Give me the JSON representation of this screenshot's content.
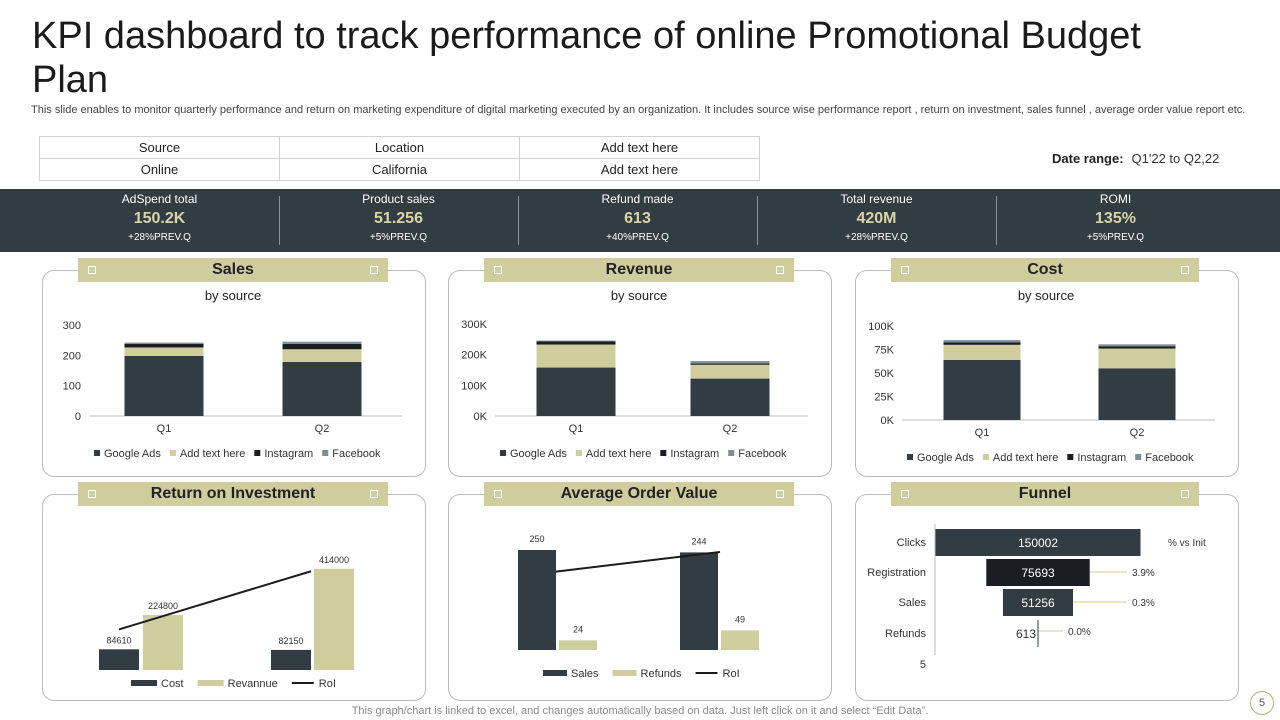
{
  "header": {
    "title": "KPI dashboard to track performance of online Promotional Budget Plan",
    "description": "This slide enables to monitor quarterly performance and return on marketing expenditure of digital marketing executed by an organization. It includes source wise performance report , return on investment, sales funnel , average order value report etc."
  },
  "source_table": {
    "rows": [
      [
        "Source",
        "Location",
        "Add text here"
      ],
      [
        "Online",
        "California",
        "Add text here"
      ]
    ]
  },
  "date_range": {
    "label": "Date range:",
    "value": "Q1'22 to Q2,22"
  },
  "kpis": [
    {
      "label": "AdSpend total",
      "value": "150.2K",
      "prev": "+28%PREV.Q"
    },
    {
      "label": "Product sales",
      "value": "51.256",
      "prev": "+5%PREV.Q"
    },
    {
      "label": "Refund made",
      "value": "613",
      "prev": "+40%PREV.Q"
    },
    {
      "label": "Total revenue",
      "value": "420M",
      "prev": "+28%PREV.Q"
    },
    {
      "label": "ROMI",
      "value": "135%",
      "prev": "+5%PREV.Q"
    }
  ],
  "cards": {
    "sales": {
      "title": "Sales",
      "subtitle": "by source"
    },
    "revenue": {
      "title": "Revenue",
      "subtitle": "by source"
    },
    "cost": {
      "title": "Cost",
      "subtitle": "by source"
    },
    "roi": {
      "title": "Return on Investment"
    },
    "aov": {
      "title": "Average Order Value"
    },
    "funnel": {
      "title": "Funnel"
    }
  },
  "colors": {
    "dark": "#323c43",
    "khaki": "#cfcd9e",
    "black": "#1b1d22",
    "gray": "#7d8e98",
    "kpi_value": "#d9d5a7"
  },
  "chart_data": [
    {
      "id": "sales",
      "type": "bar",
      "stacked": true,
      "categories": [
        "Q1",
        "Q2"
      ],
      "series": [
        {
          "name": "Google Ads",
          "values": [
            198,
            178
          ]
        },
        {
          "name": "Add text here",
          "values": [
            28,
            42
          ]
        },
        {
          "name": "Instagram",
          "values": [
            12,
            18
          ]
        },
        {
          "name": "Facebook",
          "values": [
            4,
            7
          ]
        }
      ],
      "yticks": [
        "0",
        "100",
        "200",
        "300"
      ],
      "ylim": [
        0,
        300
      ],
      "legend": "bottom"
    },
    {
      "id": "revenue",
      "type": "bar",
      "stacked": true,
      "categories": [
        "Q1",
        "Q2"
      ],
      "series": [
        {
          "name": "Google Ads",
          "values": [
            158000,
            122000
          ]
        },
        {
          "name": "Add text here",
          "values": [
            75000,
            45000
          ]
        },
        {
          "name": "Instagram",
          "values": [
            10000,
            4000
          ]
        },
        {
          "name": "Facebook",
          "values": [
            3000,
            8000
          ]
        }
      ],
      "yticks": [
        "0K",
        "100K",
        "200K",
        "300K"
      ],
      "ylim": [
        0,
        300000
      ],
      "legend": "bottom"
    },
    {
      "id": "cost",
      "type": "bar",
      "stacked": true,
      "categories": [
        "Q1",
        "Q2"
      ],
      "series": [
        {
          "name": "Google Ads",
          "values": [
            64000,
            55000
          ]
        },
        {
          "name": "Add text here",
          "values": [
            16000,
            21000
          ]
        },
        {
          "name": "Instagram",
          "values": [
            2500,
            2500
          ]
        },
        {
          "name": "Facebook",
          "values": [
            2500,
            2000
          ]
        }
      ],
      "yticks": [
        "0K",
        "25K",
        "50K",
        "75K",
        "100K"
      ],
      "ylim": [
        0,
        100000
      ],
      "legend": "bottom"
    },
    {
      "id": "roi",
      "type": "bar",
      "categories": [
        "Q1",
        "Q2"
      ],
      "series": [
        {
          "name": "Cost",
          "values": [
            84610,
            82150
          ],
          "labels": [
            "84610",
            "82150"
          ]
        },
        {
          "name": "Revannue",
          "values": [
            224800,
            414000
          ],
          "labels": [
            "224800",
            "414000"
          ]
        },
        {
          "name": "RoI",
          "values": [
            166,
            404
          ]
        }
      ],
      "ylim": [
        0,
        450000
      ],
      "legend": "bottom"
    },
    {
      "id": "aov",
      "type": "bar",
      "categories": [
        "Q1",
        "Q2"
      ],
      "series": [
        {
          "name": "Sales",
          "values": [
            250,
            244
          ],
          "labels": [
            "250",
            "244"
          ]
        },
        {
          "name": "Refunds",
          "values": [
            24,
            49
          ],
          "labels": [
            "24",
            "49"
          ]
        },
        {
          "name": "RoI",
          "values": [
            196,
            245
          ]
        }
      ],
      "ylim": [
        0,
        260
      ],
      "legend": "bottom"
    },
    {
      "id": "funnel",
      "type": "bar",
      "orientation": "horizontal",
      "categories": [
        "Clicks",
        "Registration",
        "Sales",
        "Refunds",
        "5"
      ],
      "values": [
        150002,
        75693,
        51256,
        613,
        5
      ],
      "labels": [
        "150002",
        "75693",
        "51256",
        "613",
        ""
      ],
      "pct_labels": [
        "% vs Init",
        "3.9%",
        "0.3%",
        "0.0%",
        ""
      ]
    }
  ],
  "footer": {
    "note": "This graph/chart is linked to excel, and changes automatically based on data. Just left click on it and select “Edit Data”.",
    "page": "5"
  }
}
